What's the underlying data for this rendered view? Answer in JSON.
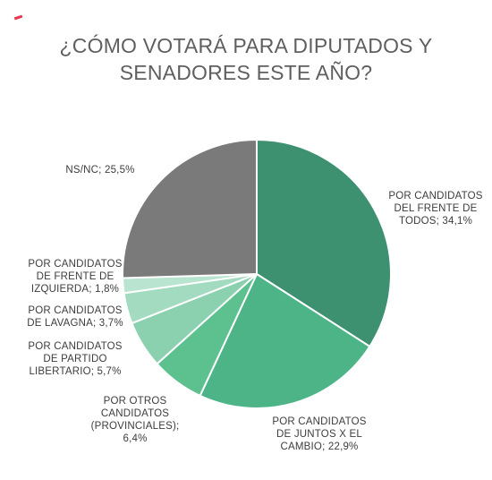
{
  "title_lines": [
    "¿CÓMO VOTARÁ PARA DIPUTADOS Y",
    "SENADORES ESTE AÑO?"
  ],
  "colors": {
    "accent": "#e8344e",
    "title": "#5f5f5f",
    "label": "#3d3d3d"
  },
  "chart_data": {
    "type": "pie",
    "title": "¿CÓMO VOTARÁ PARA DIPUTADOS Y SENADORES ESTE AÑO?",
    "start": "top",
    "direction": "clockwise",
    "slices": [
      {
        "key": "frente-de-todos",
        "value": 34.1,
        "color": "#3d9070",
        "label_lines": [
          "POR CANDIDATOS",
          "DEL FRENTE DE",
          "TODOS; 34,1%"
        ]
      },
      {
        "key": "juntos-x-el-cambio",
        "value": 22.9,
        "color": "#4db488",
        "label_lines": [
          "POR CANDIDATOS",
          "DE JUNTOS X EL",
          "CAMBIO; 22,9%"
        ]
      },
      {
        "key": "otros-provinciales",
        "value": 6.4,
        "color": "#5dc08f",
        "label_lines": [
          "POR OTROS",
          "CANDIDATOS",
          "(PROVINCIALES);",
          "6,4%"
        ]
      },
      {
        "key": "partido-libertario",
        "value": 5.7,
        "color": "#8bd1b0",
        "label_lines": [
          "POR CANDIDATOS",
          "DE PARTIDO",
          "LIBERTARIO; 5,7%"
        ]
      },
      {
        "key": "lavagna",
        "value": 3.7,
        "color": "#a2dbc0",
        "label_lines": [
          "POR CANDIDATOS",
          "DE LAVAGNA; 3,7%"
        ]
      },
      {
        "key": "frente-de-izquierda",
        "value": 1.8,
        "color": "#b9e4cf",
        "label_lines": [
          "POR CANDIDATOS",
          "DE FRENTE DE",
          "IZQUIERDA; 1,8%"
        ]
      },
      {
        "key": "ns-nc",
        "value": 25.5,
        "color": "#7a7a7a",
        "label_lines": [
          "NS/NC; 25,5%"
        ]
      }
    ],
    "legend": "none"
  }
}
